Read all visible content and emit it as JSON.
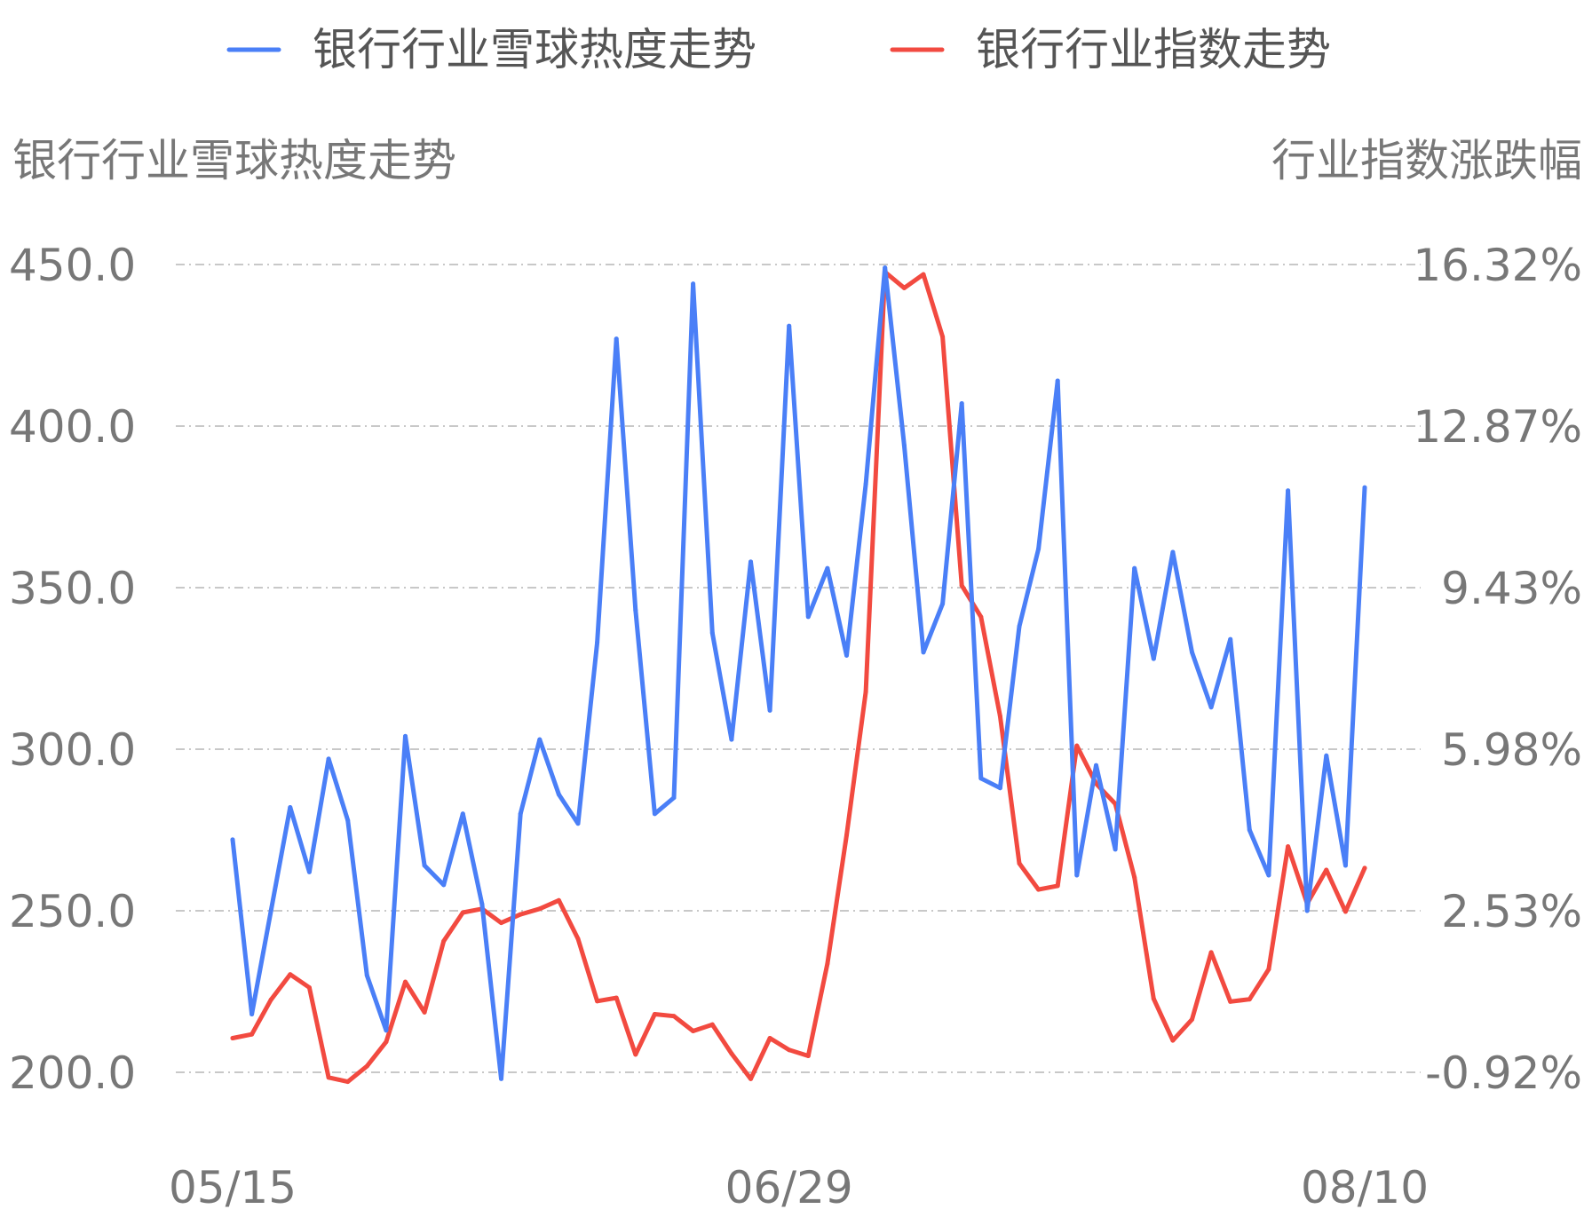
{
  "chart_data": {
    "type": "line",
    "legend": {
      "placement": "top-center"
    },
    "y_left": {
      "title": "银行行业雪球热度走势",
      "ticks": [
        "450.0",
        "400.0",
        "350.0",
        "300.0",
        "250.0",
        "200.0"
      ],
      "range": [
        200,
        450
      ]
    },
    "y_right": {
      "title": "行业指数涨跌幅",
      "ticks": [
        "16.32%",
        "12.87%",
        "9.43%",
        "5.98%",
        "2.53%",
        "-0.92%"
      ],
      "range": [
        -0.92,
        16.32
      ]
    },
    "x_ticks": [
      {
        "label": "05/15",
        "index": 0
      },
      {
        "label": "06/29",
        "index": 29
      },
      {
        "label": "08/10",
        "index": 59
      }
    ],
    "grid": true,
    "series": [
      {
        "name": "银行行业雪球热度走势",
        "axis": "left",
        "color": "#4a7ff7",
        "values": [
          272,
          218,
          250,
          282,
          262,
          297,
          278,
          230,
          213,
          304,
          264,
          258,
          280,
          252,
          198,
          280,
          303,
          286,
          277,
          333,
          427,
          343,
          280,
          285,
          444,
          336,
          303,
          358,
          312,
          431,
          341,
          356,
          329,
          382,
          449,
          394,
          330,
          345,
          407,
          291,
          288,
          338,
          362,
          414,
          261,
          295,
          269,
          356,
          328,
          361,
          330,
          313,
          334,
          275,
          261,
          380,
          250,
          298,
          264,
          381
        ]
      },
      {
        "name": "银行行业指数走势",
        "axis": "right",
        "color": "#f24a40",
        "values": [
          -0.19,
          -0.11,
          0.63,
          1.17,
          0.89,
          -1.03,
          -1.12,
          -0.79,
          -0.27,
          1.01,
          0.36,
          1.88,
          2.49,
          2.57,
          2.27,
          2.45,
          2.57,
          2.75,
          1.93,
          0.6,
          0.67,
          -0.54,
          0.32,
          0.28,
          -0.04,
          0.1,
          -0.52,
          -1.06,
          -0.19,
          -0.44,
          -0.57,
          1.4,
          4.14,
          7.2,
          16.16,
          15.82,
          16.11,
          14.78,
          9.47,
          8.8,
          6.68,
          3.54,
          2.98,
          3.06,
          6.05,
          5.24,
          4.81,
          3.24,
          0.65,
          -0.24,
          0.21,
          1.64,
          0.59,
          0.64,
          1.28,
          3.9,
          2.68,
          3.4,
          2.51,
          3.44
        ]
      }
    ]
  }
}
